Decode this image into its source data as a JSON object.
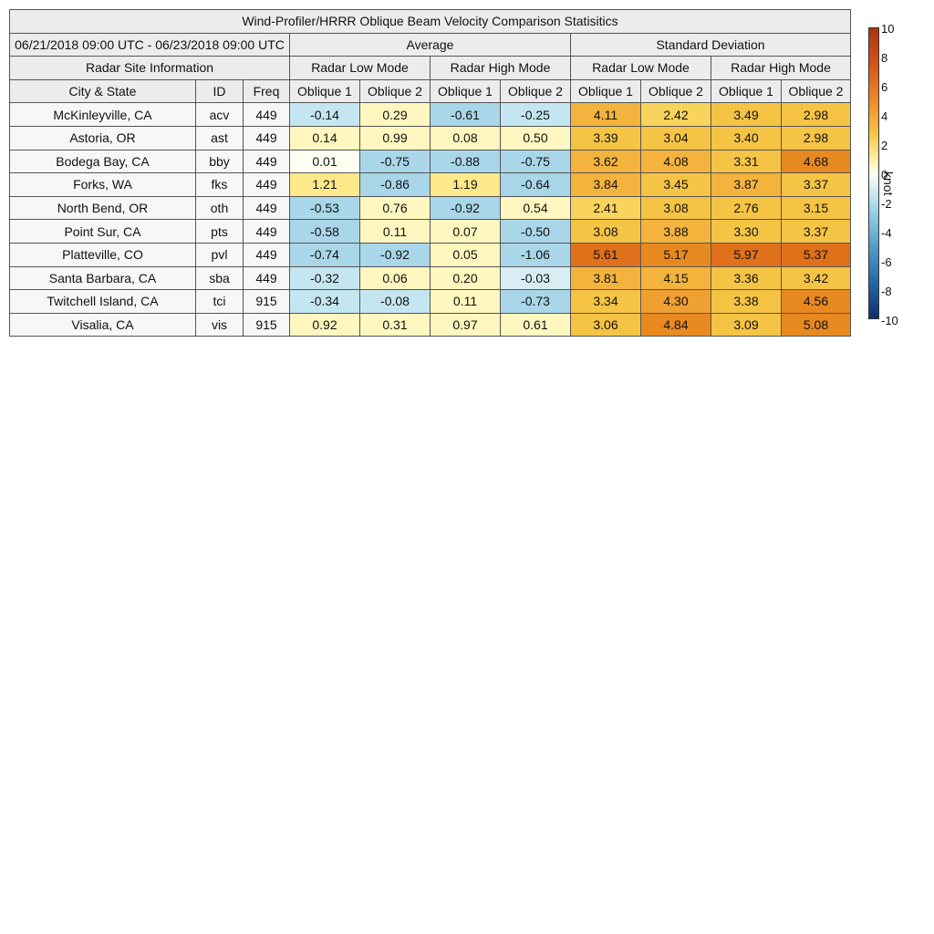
{
  "chart_data": {
    "type": "table",
    "title": "Wind-Profiler/HRRR Oblique Beam Velocity Comparison Statisitics",
    "period": "06/21/2018 09:00 UTC - 06/23/2018 09:00 UTC",
    "group_headers": [
      "Average",
      "Standard Deviation"
    ],
    "site_info_header": "Radar Site Information",
    "mode_headers": [
      "Radar Low Mode",
      "Radar High Mode",
      "Radar Low Mode",
      "Radar High Mode"
    ],
    "site_columns": [
      "City & State",
      "ID",
      "Freq"
    ],
    "beam_columns": [
      "Oblique 1",
      "Oblique 2",
      "Oblique 1",
      "Oblique 2",
      "Oblique 1",
      "Oblique 2",
      "Oblique 1",
      "Oblique 2"
    ],
    "rows": [
      {
        "city": "McKinleyville, CA",
        "id": "acv",
        "freq": "449",
        "avg": [
          "-0.14",
          "0.29",
          "-0.61",
          "-0.25"
        ],
        "std": [
          "4.11",
          "2.42",
          "3.49",
          "2.98"
        ]
      },
      {
        "city": "Astoria, OR",
        "id": "ast",
        "freq": "449",
        "avg": [
          "0.14",
          "0.99",
          "0.08",
          "0.50"
        ],
        "std": [
          "3.39",
          "3.04",
          "3.40",
          "2.98"
        ]
      },
      {
        "city": "Bodega Bay, CA",
        "id": "bby",
        "freq": "449",
        "avg": [
          "0.01",
          "-0.75",
          "-0.88",
          "-0.75"
        ],
        "std": [
          "3.62",
          "4.08",
          "3.31",
          "4.68"
        ]
      },
      {
        "city": "Forks, WA",
        "id": "fks",
        "freq": "449",
        "avg": [
          "1.21",
          "-0.86",
          "1.19",
          "-0.64"
        ],
        "std": [
          "3.84",
          "3.45",
          "3.87",
          "3.37"
        ]
      },
      {
        "city": "North Bend, OR",
        "id": "oth",
        "freq": "449",
        "avg": [
          "-0.53",
          "0.76",
          "-0.92",
          "0.54"
        ],
        "std": [
          "2.41",
          "3.08",
          "2.76",
          "3.15"
        ]
      },
      {
        "city": "Point Sur, CA",
        "id": "pts",
        "freq": "449",
        "avg": [
          "-0.58",
          "0.11",
          "0.07",
          "-0.50"
        ],
        "std": [
          "3.08",
          "3.88",
          "3.30",
          "3.37"
        ]
      },
      {
        "city": "Platteville, CO",
        "id": "pvl",
        "freq": "449",
        "avg": [
          "-0.74",
          "-0.92",
          "0.05",
          "-1.06"
        ],
        "std": [
          "5.61",
          "5.17",
          "5.97",
          "5.37"
        ]
      },
      {
        "city": "Santa Barbara, CA",
        "id": "sba",
        "freq": "449",
        "avg": [
          "-0.32",
          "0.06",
          "0.20",
          "-0.03"
        ],
        "std": [
          "3.81",
          "4.15",
          "3.36",
          "3.42"
        ]
      },
      {
        "city": "Twitchell Island, CA",
        "id": "tci",
        "freq": "915",
        "avg": [
          "-0.34",
          "-0.08",
          "0.11",
          "-0.73"
        ],
        "std": [
          "3.34",
          "4.30",
          "3.38",
          "4.56"
        ]
      },
      {
        "city": "Visalia, CA",
        "id": "vis",
        "freq": "915",
        "avg": [
          "0.92",
          "0.31",
          "0.97",
          "0.61"
        ],
        "std": [
          "3.06",
          "4.84",
          "3.09",
          "5.08"
        ]
      }
    ],
    "colorbar": {
      "label": "knot",
      "range": [
        -10,
        10
      ],
      "ticks": [
        "10",
        "8",
        "6",
        "4",
        "2",
        "0",
        "-2",
        "-4",
        "-6",
        "-8",
        "-10"
      ],
      "colors": {
        "neg": [
          "#fffff2",
          "#d8eef4",
          "#c4e6f0",
          "#a9d6e8",
          "#6aaed5",
          "#2f74b2",
          "#0e2f6b"
        ],
        "pos": [
          "#fffff2",
          "#fff7bf",
          "#fde98a",
          "#f8d45c",
          "#f5c444",
          "#f3b33c",
          "#eea030",
          "#e8891f",
          "#e0701a",
          "#c24a10",
          "#a8350e"
        ]
      }
    }
  }
}
